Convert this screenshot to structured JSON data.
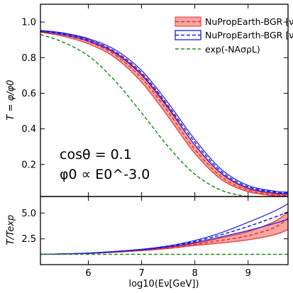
{
  "chart_data": [
    {
      "panel": "top",
      "type": "line",
      "title": "",
      "xlabel": "",
      "ylabel": "T = φ/φ0",
      "xlim": [
        5.1,
        9.75
      ],
      "ylim": [
        0.02,
        1.1
      ],
      "yticks": [
        0.2,
        0.4,
        0.6,
        0.8,
        1.0
      ],
      "ytick_labels": [
        "0.2",
        "0.4",
        "0.6",
        "0.8",
        "1.0"
      ],
      "grid": false,
      "legend_position": "top-right",
      "legend": [
        {
          "label": "NuPropEarth-BGR [νμ]",
          "color": "#e8312a",
          "style": "dashed band"
        },
        {
          "label": "NuPropEarth-BGR [ντ]",
          "color": "#1a1ae6",
          "style": "dashed band"
        },
        {
          "label": "exp(-NAσρL)",
          "color": "#1e8c1e",
          "style": "dashed"
        }
      ],
      "annotations": [
        "cosθ = 0.1",
        "φ0 ∝ E0^-3.0"
      ],
      "series": [
        {
          "name": "NuPropEarth-BGR [νμ]",
          "x": [
            5.1,
            5.5,
            6.0,
            6.5,
            7.0,
            7.5,
            8.0,
            8.5,
            9.0,
            9.5,
            9.75
          ],
          "central": [
            0.948,
            0.93,
            0.89,
            0.815,
            0.685,
            0.495,
            0.285,
            0.13,
            0.055,
            0.03,
            0.025
          ],
          "lower": [
            0.943,
            0.922,
            0.878,
            0.8,
            0.662,
            0.468,
            0.262,
            0.115,
            0.047,
            0.024,
            0.02
          ],
          "upper": [
            0.953,
            0.938,
            0.902,
            0.83,
            0.708,
            0.522,
            0.308,
            0.147,
            0.063,
            0.036,
            0.03
          ]
        },
        {
          "name": "NuPropEarth-BGR [ντ]",
          "x": [
            5.1,
            5.5,
            6.0,
            6.5,
            7.0,
            7.5,
            8.0,
            8.5,
            9.0,
            9.5,
            9.75
          ],
          "central": [
            0.95,
            0.935,
            0.9,
            0.835,
            0.715,
            0.53,
            0.325,
            0.16,
            0.075,
            0.045,
            0.04
          ],
          "lower": [
            0.947,
            0.93,
            0.893,
            0.825,
            0.702,
            0.515,
            0.31,
            0.15,
            0.068,
            0.04,
            0.035
          ],
          "upper": [
            0.953,
            0.94,
            0.907,
            0.845,
            0.728,
            0.545,
            0.34,
            0.172,
            0.082,
            0.05,
            0.045
          ]
        },
        {
          "name": "exp(-NAσρL)",
          "x": [
            5.1,
            5.5,
            6.0,
            6.5,
            7.0,
            7.5,
            8.0,
            8.5,
            9.0,
            9.5,
            9.75
          ],
          "central": [
            0.93,
            0.89,
            0.81,
            0.67,
            0.49,
            0.3,
            0.145,
            0.055,
            0.02,
            0.008,
            0.005
          ]
        }
      ]
    },
    {
      "panel": "bottom",
      "type": "line",
      "xlabel": "log10(Eν[GeV])",
      "ylabel": "T/Texp",
      "xlim": [
        5.1,
        9.75
      ],
      "ylim": [
        0.0,
        6.6
      ],
      "xticks": [
        6,
        7,
        8,
        9
      ],
      "xtick_labels": [
        "6",
        "7",
        "8",
        "9"
      ],
      "yticks": [
        2.5,
        5.0
      ],
      "ytick_labels": [
        "2.5",
        "5.0"
      ],
      "series": [
        {
          "name": "NuPropEarth-BGR [νμ]",
          "x": [
            5.1,
            6.0,
            7.0,
            7.5,
            8.0,
            8.5,
            9.0,
            9.5,
            9.75
          ],
          "central": [
            1.0,
            1.1,
            1.4,
            1.62,
            1.95,
            2.35,
            2.8,
            3.6,
            4.5
          ],
          "lower": [
            1.0,
            1.08,
            1.35,
            1.56,
            1.85,
            2.1,
            2.4,
            2.9,
            3.4
          ],
          "upper": [
            1.0,
            1.12,
            1.45,
            1.68,
            2.05,
            2.6,
            3.2,
            4.2,
            5.1
          ]
        },
        {
          "name": "NuPropEarth-BGR [ντ]",
          "x": [
            5.1,
            6.0,
            7.0,
            7.5,
            8.0,
            8.5,
            9.0,
            9.5,
            9.75
          ],
          "central": [
            1.0,
            1.11,
            1.46,
            1.77,
            2.24,
            2.9,
            3.7,
            4.6,
            5.1
          ],
          "lower": [
            1.0,
            1.1,
            1.43,
            1.72,
            2.14,
            2.7,
            3.3,
            4.0,
            4.4
          ],
          "upper": [
            1.0,
            1.12,
            1.49,
            1.82,
            2.34,
            3.1,
            4.1,
            5.2,
            5.9
          ]
        },
        {
          "name": "exp(-NAσρL)",
          "x": [
            5.1,
            9.75
          ],
          "central": [
            1.0,
            1.0
          ]
        }
      ]
    }
  ]
}
